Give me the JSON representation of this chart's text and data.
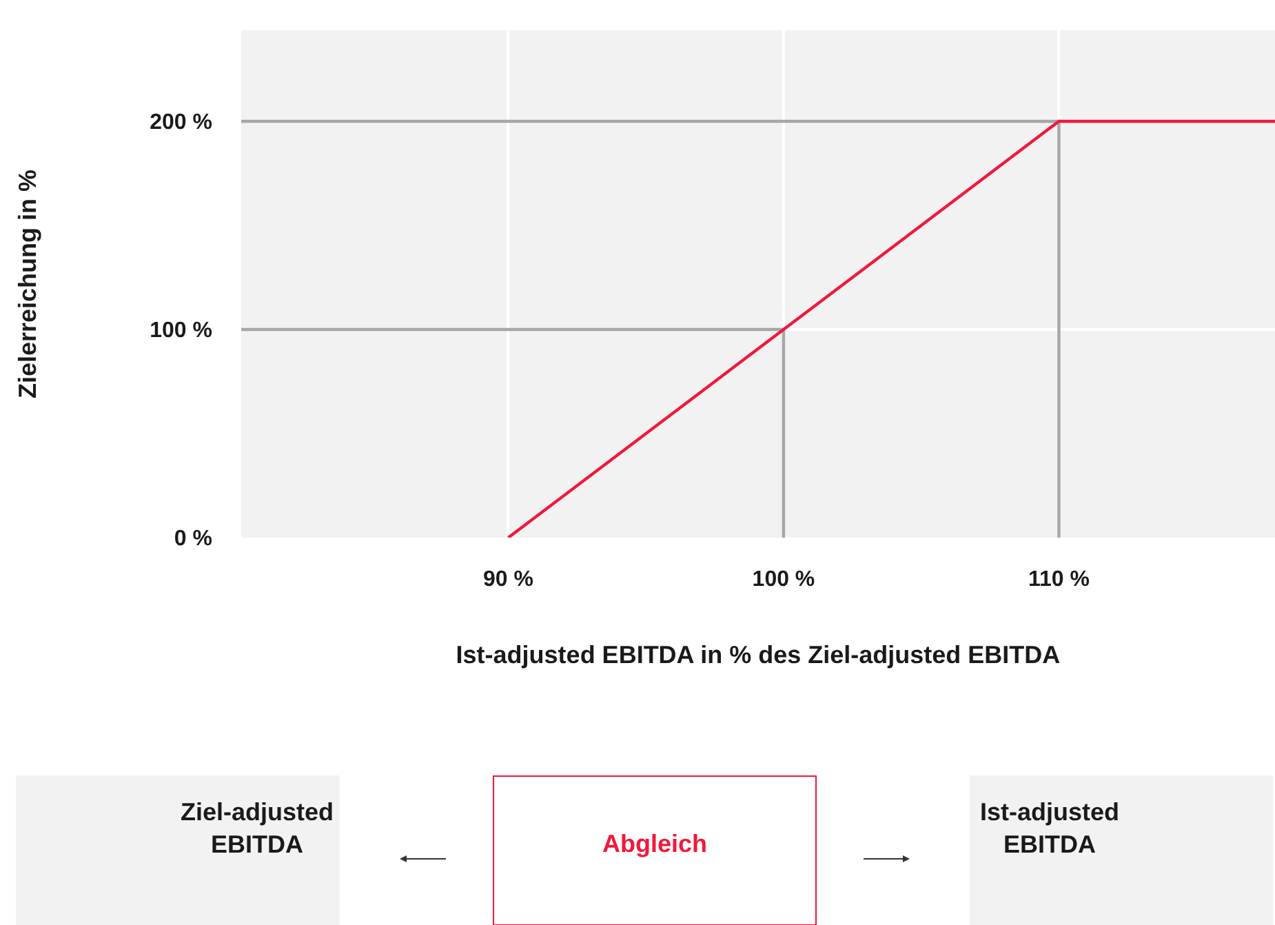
{
  "chart_data": {
    "type": "line",
    "xlabel": "Ist-adjusted EBITDA in % des Ziel-adjusted EBITDA",
    "ylabel": "Zielerreichung in %",
    "series": [
      {
        "color": "#a6a6a6",
        "x": [
          80.3,
          110,
          110,
          null,
          80.3,
          100,
          100
        ],
        "values": [
          200,
          200,
          0,
          null,
          100,
          100,
          0
        ]
      },
      {
        "color": "#f0193c",
        "x": [
          90,
          100,
          110,
          117.85
        ],
        "values": [
          0,
          100,
          200,
          200
        ]
      }
    ],
    "xlim": [
      80.3,
      117.85
    ],
    "ylim": [
      0,
      243.7
    ],
    "xticks": [
      {
        "value": 90,
        "label": "90 %"
      },
      {
        "value": 100,
        "label": "100 %"
      },
      {
        "value": 110,
        "label": "110 %"
      }
    ],
    "yticks": [
      {
        "value": 0,
        "label": "0 %"
      },
      {
        "value": 100,
        "label": "100 %"
      },
      {
        "value": 200,
        "label": "200 %"
      }
    ],
    "grid": true,
    "marker": "none",
    "line_style": "solid",
    "annotations": [
      "Ziel-adjusted\nEBITDA",
      "Abgleich",
      "Ist-adjusted\nEBITDA"
    ]
  }
}
